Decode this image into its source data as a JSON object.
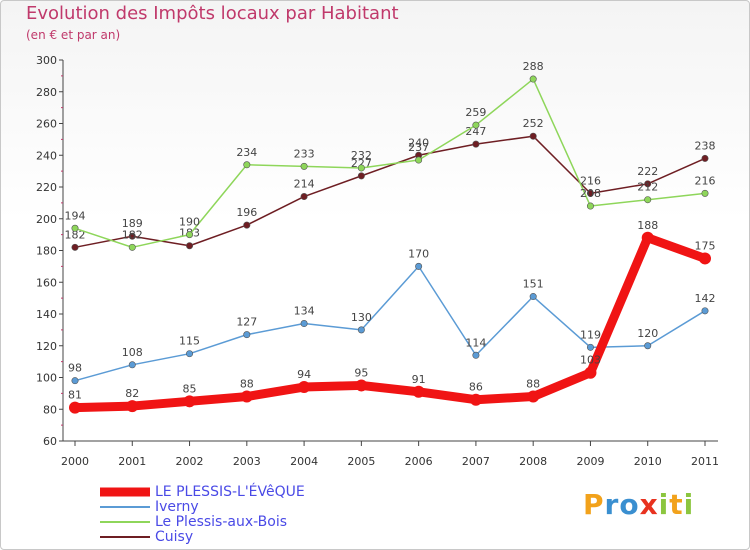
{
  "title": "Evolution des Impôts locaux par Habitant",
  "subtitle": "(en € et par an)",
  "logo": {
    "letters": [
      "P",
      "r",
      "o",
      "x",
      "i",
      "t",
      "i"
    ],
    "colors": [
      "#f2a21b",
      "#3a8fd0",
      "#3a8fd0",
      "#e8321f",
      "#8cc63f",
      "#f2a21b",
      "#8cc63f"
    ]
  },
  "chart_data": {
    "type": "line",
    "categories": [
      "2000",
      "2001",
      "2002",
      "2003",
      "2004",
      "2005",
      "2006",
      "2007",
      "2008",
      "2009",
      "2010",
      "2011"
    ],
    "ylim": [
      60,
      300
    ],
    "yticks": [
      60,
      80,
      100,
      120,
      140,
      160,
      180,
      200,
      220,
      240,
      260,
      280,
      300
    ],
    "grid": false,
    "legend": "bottom-left",
    "series": [
      {
        "name": "LE PLESSIS-L'ÉVêQUE",
        "color": "#f01414",
        "values": [
          81,
          82,
          85,
          88,
          94,
          95,
          91,
          86,
          88,
          103,
          188,
          175
        ]
      },
      {
        "name": "Iverny",
        "color": "#5b9bd5",
        "values": [
          98,
          108,
          115,
          127,
          134,
          130,
          170,
          114,
          151,
          119,
          120,
          142
        ]
      },
      {
        "name": "Le Plessis-aux-Bois",
        "color": "#8ed65a",
        "values": [
          194,
          182,
          190,
          234,
          233,
          232,
          237,
          259,
          288,
          208,
          212,
          216
        ]
      },
      {
        "name": "Cuisy",
        "color": "#6e1e23",
        "values": [
          182,
          189,
          183,
          196,
          214,
          227,
          240,
          247,
          252,
          216,
          222,
          238
        ]
      }
    ]
  }
}
